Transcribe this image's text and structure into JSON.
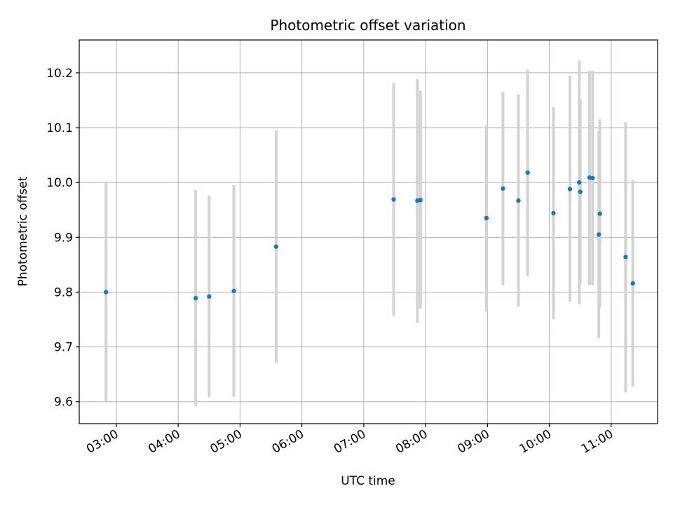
{
  "chart_data": {
    "type": "scatter",
    "title": "Photometric offset variation",
    "xlabel": "UTC time",
    "ylabel": "Photometric offset",
    "xlim": [
      "02:24",
      "11:45"
    ],
    "ylim": [
      9.56,
      10.26
    ],
    "x_ticks": [
      "03:00",
      "04:00",
      "05:00",
      "06:00",
      "07:00",
      "08:00",
      "09:00",
      "10:00",
      "11:00"
    ],
    "y_ticks": [
      "9.6",
      "9.7",
      "9.8",
      "9.9",
      "10.0",
      "10.1",
      "10.2"
    ],
    "grid": true,
    "colors": {
      "point": "#1f77b4",
      "errorbar": "#d3d3d3",
      "grid": "#b0b0b0"
    },
    "series": [
      {
        "points": [
          {
            "x": "02:50",
            "y": 9.8,
            "ylow": 9.6,
            "yhigh": 10.0
          },
          {
            "x": "04:17",
            "y": 9.789,
            "ylow": 9.592,
            "yhigh": 9.986
          },
          {
            "x": "04:30",
            "y": 9.792,
            "ylow": 9.608,
            "yhigh": 9.976
          },
          {
            "x": "04:54",
            "y": 9.802,
            "ylow": 9.609,
            "yhigh": 9.995
          },
          {
            "x": "05:35",
            "y": 9.883,
            "ylow": 9.671,
            "yhigh": 10.095
          },
          {
            "x": "07:29",
            "y": 9.969,
            "ylow": 9.757,
            "yhigh": 10.182
          },
          {
            "x": "07:52",
            "y": 9.967,
            "ylow": 9.744,
            "yhigh": 10.189
          },
          {
            "x": "07:55",
            "y": 9.968,
            "ylow": 9.77,
            "yhigh": 10.168
          },
          {
            "x": "08:59",
            "y": 9.935,
            "ylow": 9.765,
            "yhigh": 10.105
          },
          {
            "x": "09:15",
            "y": 9.989,
            "ylow": 9.812,
            "yhigh": 10.165
          },
          {
            "x": "09:30",
            "y": 9.967,
            "ylow": 9.774,
            "yhigh": 10.161
          },
          {
            "x": "09:39",
            "y": 10.018,
            "ylow": 9.829,
            "yhigh": 10.206
          },
          {
            "x": "10:04",
            "y": 9.944,
            "ylow": 9.75,
            "yhigh": 10.138
          },
          {
            "x": "10:20",
            "y": 9.988,
            "ylow": 9.782,
            "yhigh": 10.195
          },
          {
            "x": "10:29",
            "y": 10.0,
            "ylow": 9.778,
            "yhigh": 10.222
          },
          {
            "x": "10:30",
            "y": 9.983,
            "ylow": 9.815,
            "yhigh": 10.152
          },
          {
            "x": "10:39",
            "y": 10.009,
            "ylow": 9.813,
            "yhigh": 10.204
          },
          {
            "x": "10:42",
            "y": 10.008,
            "ylow": 9.812,
            "yhigh": 10.204
          },
          {
            "x": "10:48",
            "y": 9.905,
            "ylow": 9.716,
            "yhigh": 10.094
          },
          {
            "x": "10:49",
            "y": 9.943,
            "ylow": 9.772,
            "yhigh": 10.115
          },
          {
            "x": "11:14",
            "y": 9.864,
            "ylow": 9.617,
            "yhigh": 10.11
          },
          {
            "x": "11:21",
            "y": 9.816,
            "ylow": 9.628,
            "yhigh": 10.004
          }
        ]
      }
    ]
  }
}
